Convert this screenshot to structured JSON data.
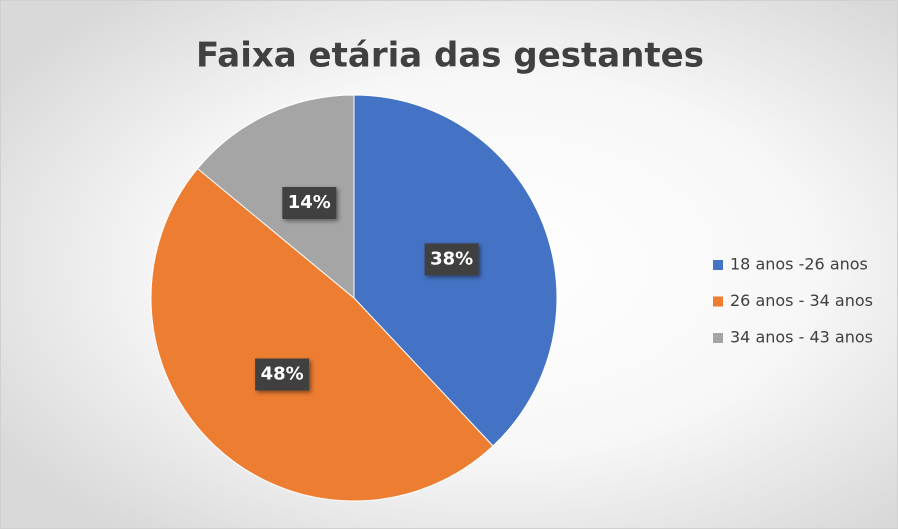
{
  "chart_data": {
    "type": "pie",
    "title": "Faixa etária das gestantes",
    "categories": [
      "18 anos -26 anos",
      "26 anos - 34 anos",
      "34 anos - 43 anos"
    ],
    "values": [
      38,
      48,
      14
    ],
    "value_labels": [
      "38%",
      "48%",
      "14%"
    ],
    "colors": [
      "#4472c4",
      "#ed7d31",
      "#a5a5a5"
    ],
    "legend": "right"
  }
}
